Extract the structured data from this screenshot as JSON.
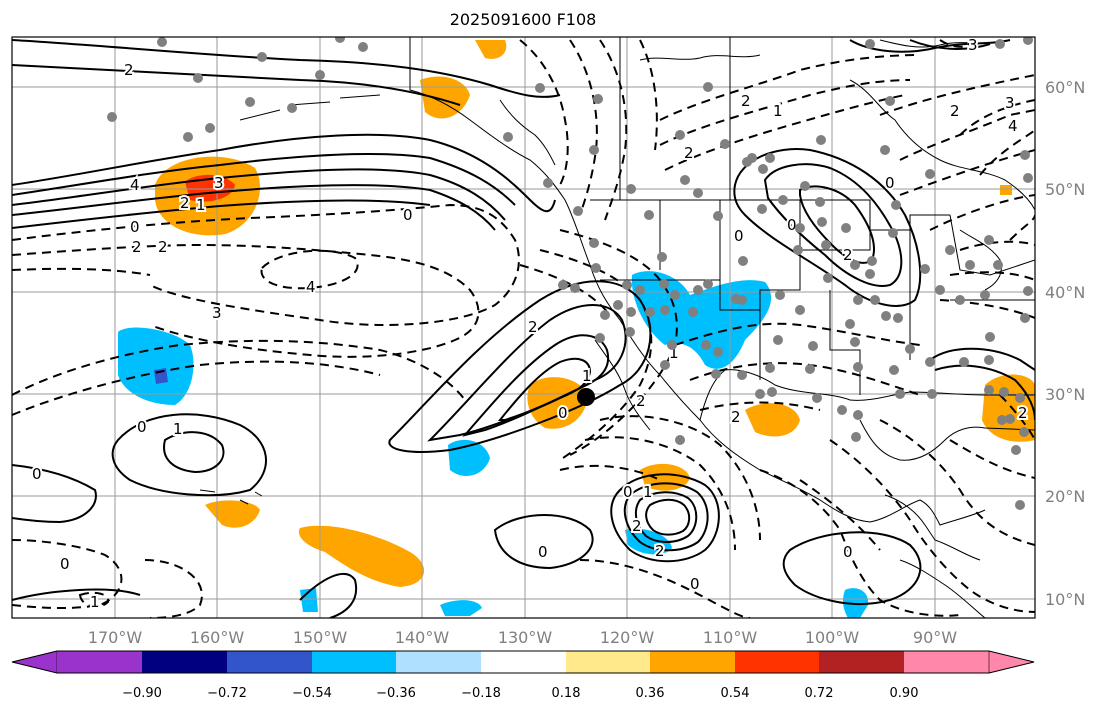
{
  "title": "2025091600 F108",
  "lon_labels": [
    "170°W",
    "160°W",
    "150°W",
    "140°W",
    "130°W",
    "120°W",
    "110°W",
    "100°W",
    "90°W"
  ],
  "lat_labels": [
    "60°N",
    "50°N",
    "40°N",
    "30°N",
    "20°N",
    "10°N"
  ],
  "colorbar": {
    "tick_labels": [
      "−0.90",
      "−0.72",
      "−0.54",
      "−0.36",
      "−0.18",
      "0.18",
      "0.36",
      "0.54",
      "0.72",
      "0.90"
    ],
    "colors": [
      "#9933cc",
      "#000080",
      "#3355cc",
      "#00bfff",
      "#b0e0ff",
      "#ffffff",
      "#ffe98a",
      "#ffa500",
      "#ff3300",
      "#b22222",
      "#ff88aa"
    ]
  },
  "contour_labels": [
    "2",
    "4",
    "2",
    "0",
    "2",
    "2",
    "3",
    "4",
    "0",
    "3",
    "2",
    "1",
    "0",
    "2",
    "2",
    "1",
    "0",
    "0",
    "2",
    "3",
    "2",
    "4",
    "1",
    "0",
    "1",
    "0",
    "1",
    "2",
    "0",
    "2",
    "0",
    "1",
    "0",
    "2",
    "0",
    "2",
    "0",
    "0",
    "1",
    "3",
    "2"
  ],
  "colors": {
    "positive": "#ffa500",
    "positive_strong": "#ff3300",
    "negative": "#00bfff",
    "negative_strong": "#3355cc",
    "stations": "#808080"
  }
}
